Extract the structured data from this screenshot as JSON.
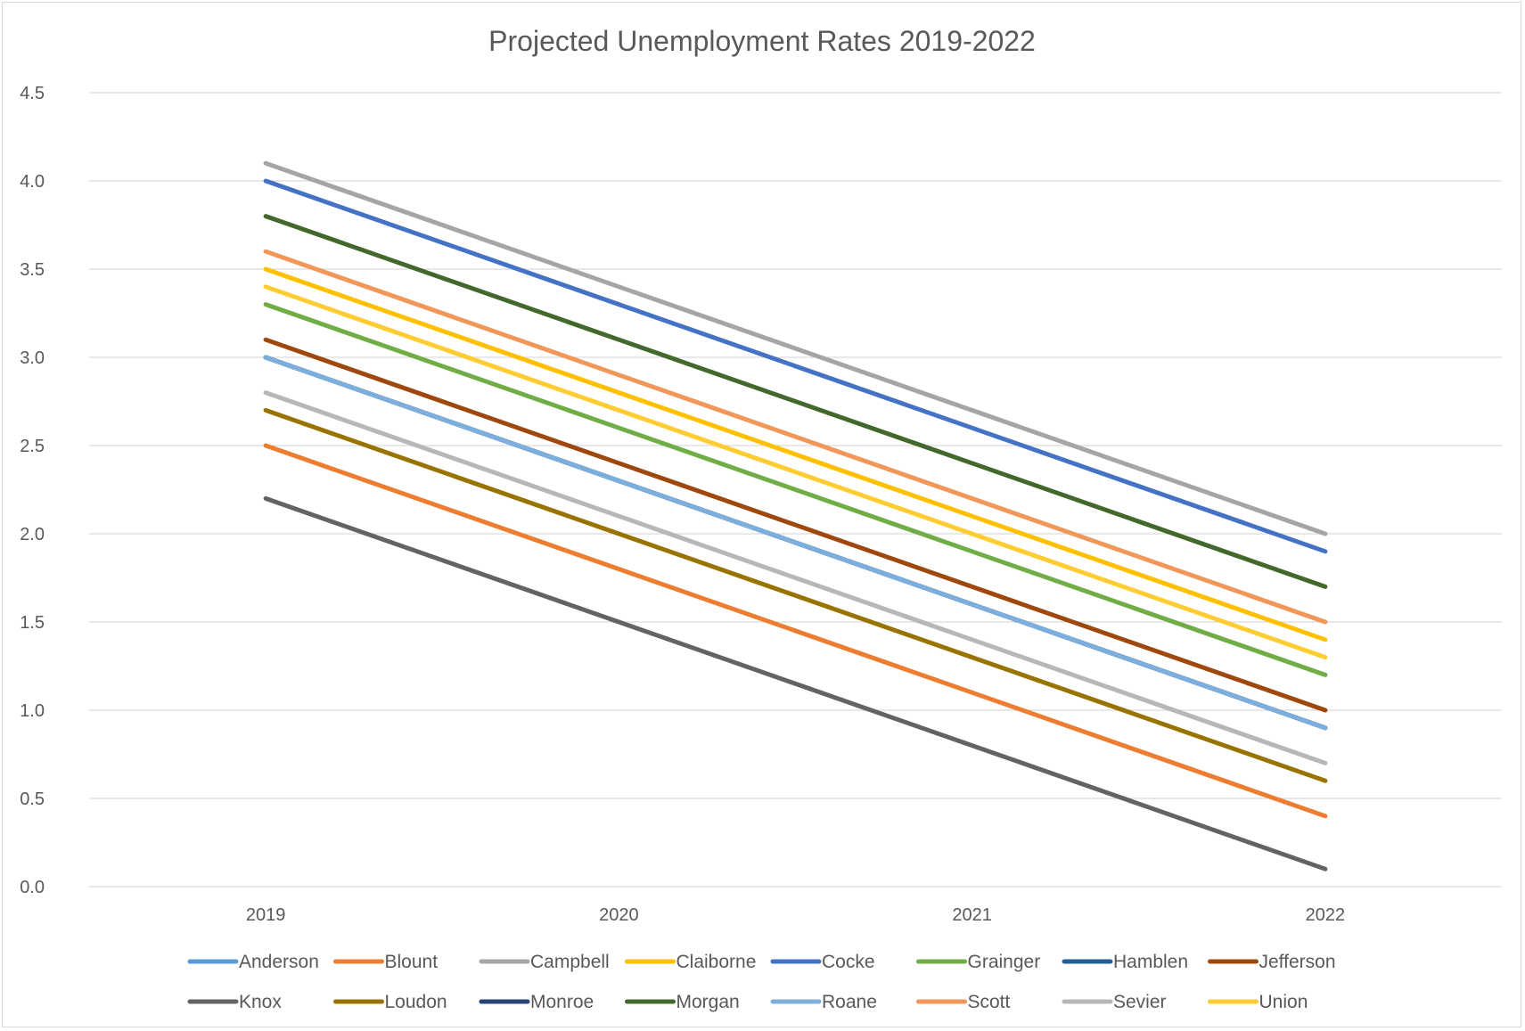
{
  "chart_data": {
    "type": "line",
    "title": "Projected Unemployment Rates 2019-2022",
    "xlabel": "",
    "ylabel": "",
    "x": [
      "2019",
      "2020",
      "2021",
      "2022"
    ],
    "ylim": [
      0,
      4.5
    ],
    "yticks": [
      "0.0",
      "0.5",
      "1.0",
      "1.5",
      "2.0",
      "2.5",
      "3.0",
      "3.5",
      "4.0",
      "4.5"
    ],
    "grid": true,
    "legend_position": "bottom",
    "series": [
      {
        "name": "Anderson",
        "color": "#5B9BD5",
        "values": [
          3.0,
          2.3,
          1.6,
          0.9
        ]
      },
      {
        "name": "Blount",
        "color": "#ED7D31",
        "values": [
          2.5,
          1.8,
          1.1,
          0.4
        ]
      },
      {
        "name": "Campbell",
        "color": "#A5A5A5",
        "values": [
          4.1,
          3.4,
          2.7,
          2.0
        ]
      },
      {
        "name": "Claiborne",
        "color": "#FFC000",
        "values": [
          3.5,
          2.8,
          2.1,
          1.4
        ]
      },
      {
        "name": "Cocke",
        "color": "#4472C4",
        "values": [
          4.0,
          3.3,
          2.6,
          1.9
        ]
      },
      {
        "name": "Grainger",
        "color": "#70AD47",
        "values": [
          3.3,
          2.6,
          1.9,
          1.2
        ]
      },
      {
        "name": "Hamblen",
        "color": "#255E91",
        "values": [
          3.0,
          2.3,
          1.6,
          0.9
        ]
      },
      {
        "name": "Jefferson",
        "color": "#9E480E",
        "values": [
          3.1,
          2.4,
          1.7,
          1.0
        ]
      },
      {
        "name": "Knox",
        "color": "#636363",
        "values": [
          2.2,
          1.5,
          0.8,
          0.1
        ]
      },
      {
        "name": "Loudon",
        "color": "#997300",
        "values": [
          2.7,
          2.0,
          1.3,
          0.6
        ]
      },
      {
        "name": "Monroe",
        "color": "#264478",
        "values": [
          3.0,
          2.3,
          1.6,
          0.9
        ]
      },
      {
        "name": "Morgan",
        "color": "#43682B",
        "values": [
          3.8,
          3.1,
          2.4,
          1.7
        ]
      },
      {
        "name": "Roane",
        "color": "#7CAFDD",
        "values": [
          3.0,
          2.3,
          1.6,
          0.9
        ]
      },
      {
        "name": "Scott",
        "color": "#F1975A",
        "values": [
          3.6,
          2.9,
          2.2,
          1.5
        ]
      },
      {
        "name": "Sevier",
        "color": "#B7B7B7",
        "values": [
          2.8,
          2.1,
          1.4,
          0.7
        ]
      },
      {
        "name": "Union",
        "color": "#FFCD33",
        "values": [
          3.4,
          2.7,
          2.0,
          1.3
        ]
      }
    ]
  }
}
